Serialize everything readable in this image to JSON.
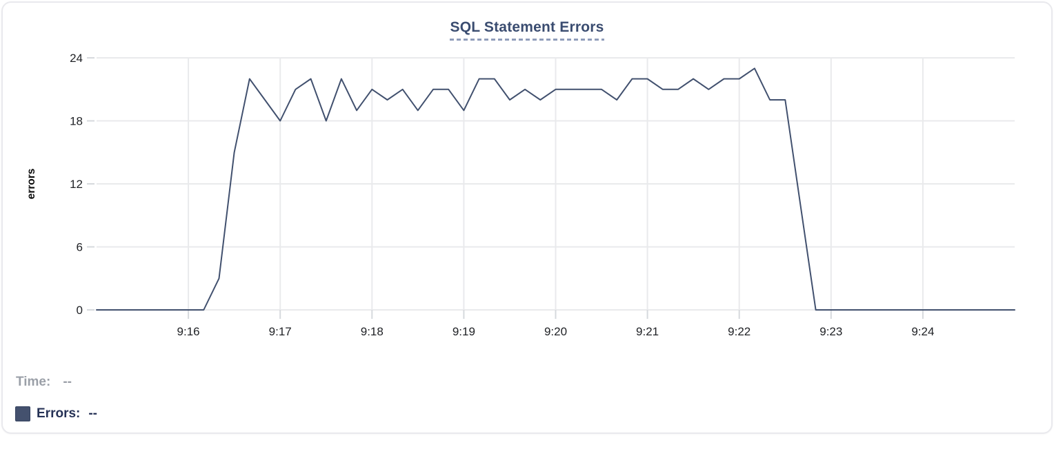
{
  "chart_data": {
    "type": "line",
    "title": "SQL Statement Errors",
    "ylabel": "errors",
    "xlabel": "",
    "x_ticks": [
      "9:16",
      "9:17",
      "9:18",
      "9:19",
      "9:20",
      "9:21",
      "9:22",
      "9:23",
      "9:24"
    ],
    "y_ticks": [
      0,
      6,
      12,
      18,
      24
    ],
    "ylim": [
      0,
      24
    ],
    "x_range": [
      "9:15:00",
      "9:25:00"
    ],
    "grid": true,
    "legend_position": "bottom-left",
    "line_color": "#41506e",
    "series": [
      {
        "name": "Errors",
        "x": [
          "9:15:00",
          "9:15:10",
          "9:15:20",
          "9:15:30",
          "9:15:40",
          "9:15:50",
          "9:16:00",
          "9:16:10",
          "9:16:20",
          "9:16:30",
          "9:16:40",
          "9:16:50",
          "9:17:00",
          "9:17:10",
          "9:17:20",
          "9:17:30",
          "9:17:40",
          "9:17:50",
          "9:18:00",
          "9:18:10",
          "9:18:20",
          "9:18:30",
          "9:18:40",
          "9:18:50",
          "9:19:00",
          "9:19:10",
          "9:19:20",
          "9:19:30",
          "9:19:40",
          "9:19:50",
          "9:20:00",
          "9:20:10",
          "9:20:20",
          "9:20:30",
          "9:20:40",
          "9:20:50",
          "9:21:00",
          "9:21:10",
          "9:21:20",
          "9:21:30",
          "9:21:40",
          "9:21:50",
          "9:22:00",
          "9:22:10",
          "9:22:20",
          "9:22:30",
          "9:22:40",
          "9:22:50",
          "9:23:00",
          "9:23:10",
          "9:23:20",
          "9:23:30",
          "9:23:40",
          "9:23:50",
          "9:24:00",
          "9:24:10",
          "9:24:20",
          "9:24:30",
          "9:24:40",
          "9:24:50",
          "9:25:00"
        ],
        "values": [
          0,
          0,
          0,
          0,
          0,
          0,
          0,
          0,
          3,
          15,
          22,
          20,
          18,
          21,
          22,
          18,
          22,
          19,
          21,
          20,
          21,
          19,
          21,
          21,
          19,
          22,
          22,
          20,
          21,
          20,
          21,
          21,
          21,
          21,
          20,
          22,
          22,
          21,
          21,
          22,
          21,
          22,
          22,
          23,
          20,
          20,
          10,
          0,
          0,
          0,
          0,
          0,
          0,
          0,
          0,
          0,
          0,
          0,
          0,
          0,
          0
        ]
      }
    ]
  },
  "legend": {
    "time_label": "Time:",
    "time_value": "--",
    "errors_label": "Errors:",
    "errors_value": "--",
    "swatch_color": "#44516e"
  },
  "colors": {
    "title": "#3a4c70",
    "title_underline": "#8f9cba",
    "grid": "#e9eaec",
    "tick_mark": "#d6d9dd",
    "axis_text": "#202226",
    "ylabel_text": "#0a0a0a",
    "legend_muted": "#9ba0a8",
    "legend_strong": "#263256"
  }
}
